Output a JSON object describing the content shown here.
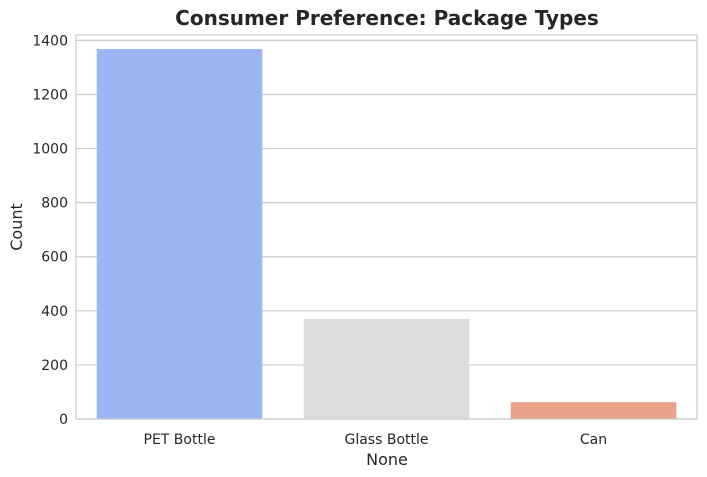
{
  "chart_data": {
    "type": "bar",
    "title": "Consumer Preference: Package Types",
    "xlabel": "None",
    "ylabel": "Count",
    "categories": [
      "PET Bottle",
      "Glass Bottle",
      "Can"
    ],
    "values": [
      1368,
      370,
      62
    ],
    "colors": [
      "#9bb6f2",
      "#dcdcdc",
      "#eba08a"
    ],
    "ylim": [
      0,
      1420
    ],
    "yticks": [
      0,
      200,
      400,
      600,
      800,
      1000,
      1200,
      1400
    ],
    "grid": true
  }
}
